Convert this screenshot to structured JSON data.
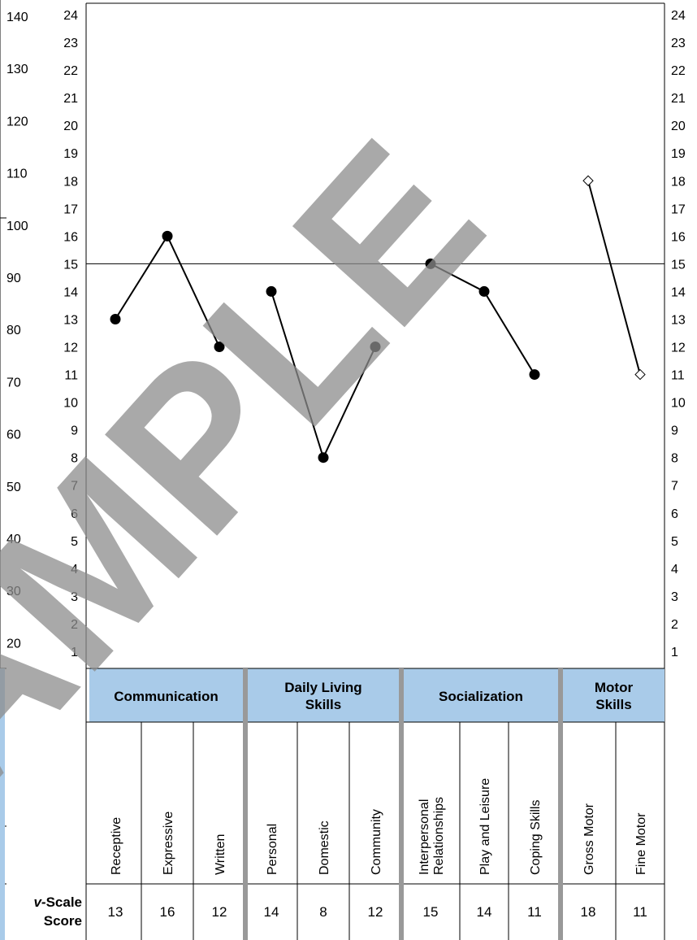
{
  "watermark": "SAMPLE",
  "chart_data": {
    "type": "line",
    "y_left_outer_ticks": [
      "140",
      "130",
      "120",
      "110",
      "100",
      "90",
      "80",
      "70",
      "60",
      "50",
      "40",
      "30",
      "20"
    ],
    "y_scale_ticks": [
      "24",
      "23",
      "22",
      "21",
      "20",
      "19",
      "18",
      "17",
      "16",
      "15",
      "14",
      "13",
      "12",
      "11",
      "10",
      "9",
      "8",
      "7",
      "6",
      "5",
      "4",
      "3",
      "2",
      "1"
    ],
    "ylim": [
      1,
      24
    ],
    "reference_line": 15,
    "domains": [
      {
        "name": "Communication",
        "subdomains": [
          "Receptive",
          "Expressive",
          "Written"
        ],
        "values": [
          13,
          16,
          12
        ],
        "marker": "filled-circle"
      },
      {
        "name": "Daily Living Skills",
        "subdomains": [
          "Personal",
          "Domestic",
          "Community"
        ],
        "values": [
          14,
          8,
          12
        ],
        "marker": "filled-circle"
      },
      {
        "name": "Socialization",
        "subdomains": [
          "Interpersonal Relationships",
          "Play and Leisure",
          "Coping Skills"
        ],
        "values": [
          15,
          14,
          11
        ],
        "marker": "filled-circle"
      },
      {
        "name": "Motor Skills",
        "subdomains": [
          "Gross Motor",
          "Fine Motor"
        ],
        "values": [
          18,
          11
        ],
        "marker": "open-diamond"
      }
    ],
    "score_row_label_prefix": "v",
    "score_row_label": "-Scale Score"
  },
  "colors": {
    "header_fill": "#a9cbe9",
    "separator": "#999999",
    "line": "#000000"
  }
}
